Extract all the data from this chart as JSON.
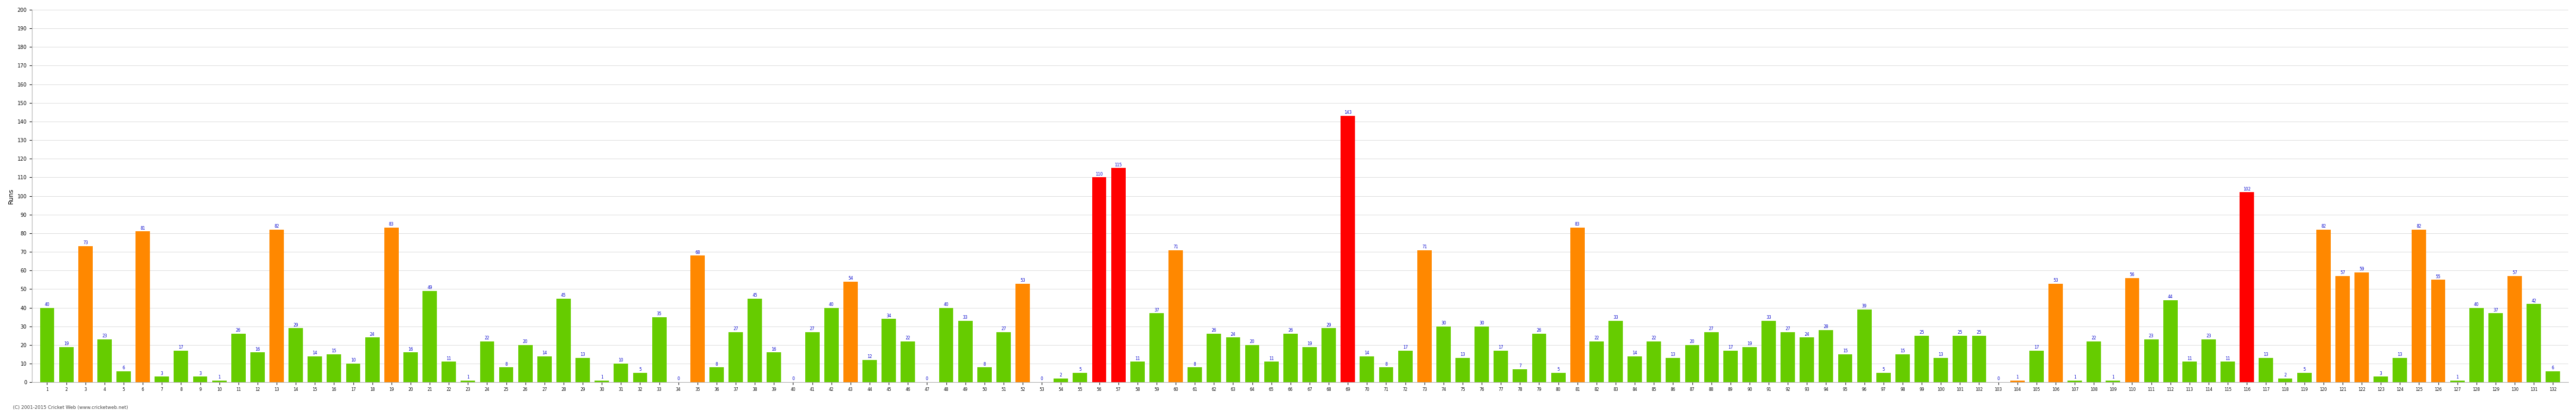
{
  "innings": [
    1,
    2,
    3,
    4,
    5,
    6,
    7,
    8,
    9,
    10,
    11,
    12,
    13,
    14,
    15,
    16,
    17,
    18,
    19,
    20,
    21,
    22,
    23,
    24,
    25,
    26,
    27,
    28,
    29,
    30,
    31,
    32,
    33,
    34,
    35,
    36,
    37,
    38,
    39,
    40,
    41,
    42,
    43,
    44,
    45,
    46,
    47,
    48,
    49,
    50,
    51,
    52,
    53,
    54,
    55,
    56,
    57,
    58,
    59,
    60,
    61,
    62,
    63,
    64,
    65,
    66,
    67,
    68,
    69,
    70,
    71,
    72,
    73,
    74,
    75,
    76,
    77,
    78,
    79,
    80,
    81,
    82,
    83,
    84,
    85,
    86,
    87,
    88,
    89,
    90,
    91,
    92,
    93,
    94,
    95,
    96,
    97,
    98,
    99,
    100,
    101,
    102,
    103,
    104,
    105,
    106,
    107,
    108,
    109,
    110,
    111,
    112,
    113,
    114,
    115,
    116,
    117,
    118,
    119,
    120,
    121,
    122,
    123,
    124,
    125,
    126,
    127,
    128,
    129,
    130,
    131,
    132
  ],
  "values": [
    40,
    19,
    73,
    23,
    6,
    81,
    3,
    17,
    3,
    1,
    26,
    16,
    82,
    29,
    14,
    15,
    10,
    24,
    83,
    16,
    49,
    11,
    1,
    22,
    8,
    20,
    14,
    45,
    13,
    1,
    10,
    5,
    35,
    0,
    68,
    8,
    27,
    45,
    16,
    0,
    27,
    40,
    54,
    12,
    34,
    22,
    0,
    40,
    33,
    8,
    27,
    53,
    0,
    2,
    5,
    110,
    115,
    11,
    37,
    71,
    8,
    26,
    24,
    20,
    11,
    26,
    19,
    29,
    143,
    14,
    8,
    17,
    71,
    30,
    13,
    30,
    17,
    7,
    26,
    5,
    83,
    22,
    33,
    14,
    22,
    13,
    20,
    27,
    17,
    19,
    33,
    27,
    24,
    28,
    15,
    39,
    5,
    15,
    25,
    13,
    25,
    25,
    0,
    1,
    17,
    53,
    1,
    22,
    1,
    56,
    23,
    44,
    11,
    23,
    11,
    102,
    13,
    2,
    5,
    82,
    57,
    59,
    3,
    13,
    82,
    55,
    1,
    40,
    37,
    57,
    42,
    6
  ],
  "colors": [
    "#66cc00",
    "#66cc00",
    "#ff8800",
    "#66cc00",
    "#66cc00",
    "#ff8800",
    "#66cc00",
    "#66cc00",
    "#66cc00",
    "#66cc00",
    "#66cc00",
    "#66cc00",
    "#ff8800",
    "#66cc00",
    "#66cc00",
    "#66cc00",
    "#66cc00",
    "#66cc00",
    "#ff8800",
    "#66cc00",
    "#66cc00",
    "#66cc00",
    "#66cc00",
    "#66cc00",
    "#66cc00",
    "#66cc00",
    "#66cc00",
    "#66cc00",
    "#66cc00",
    "#66cc00",
    "#66cc00",
    "#66cc00",
    "#66cc00",
    "#66cc00",
    "#ff8800",
    "#66cc00",
    "#66cc00",
    "#66cc00",
    "#66cc00",
    "#66cc00",
    "#66cc00",
    "#66cc00",
    "#ff8800",
    "#66cc00",
    "#66cc00",
    "#66cc00",
    "#66cc00",
    "#66cc00",
    "#66cc00",
    "#66cc00",
    "#66cc00",
    "#ff8800",
    "#66cc00",
    "#66cc00",
    "#66cc00",
    "#ff0000",
    "#ff0000",
    "#66cc00",
    "#66cc00",
    "#ff8800",
    "#66cc00",
    "#66cc00",
    "#66cc00",
    "#66cc00",
    "#66cc00",
    "#66cc00",
    "#66cc00",
    "#66cc00",
    "#ff0000",
    "#66cc00",
    "#66cc00",
    "#66cc00",
    "#ff8800",
    "#66cc00",
    "#66cc00",
    "#66cc00",
    "#66cc00",
    "#66cc00",
    "#66cc00",
    "#66cc00",
    "#ff8800",
    "#66cc00",
    "#66cc00",
    "#66cc00",
    "#66cc00",
    "#66cc00",
    "#66cc00",
    "#66cc00",
    "#66cc00",
    "#66cc00",
    "#66cc00",
    "#66cc00",
    "#66cc00",
    "#66cc00",
    "#66cc00",
    "#66cc00",
    "#66cc00",
    "#66cc00",
    "#66cc00",
    "#66cc00",
    "#66cc00",
    "#66cc00",
    "#66cc00",
    "#ff8800",
    "#66cc00",
    "#ff8800",
    "#66cc00",
    "#66cc00",
    "#66cc00",
    "#ff8800",
    "#66cc00",
    "#66cc00",
    "#66cc00",
    "#66cc00",
    "#66cc00",
    "#ff0000",
    "#66cc00",
    "#66cc00",
    "#66cc00",
    "#ff8800",
    "#ff8800",
    "#ff8800",
    "#66cc00",
    "#66cc00",
    "#ff8800",
    "#ff8800",
    "#66cc00",
    "#66cc00",
    "#66cc00",
    "#ff8800",
    "#66cc00",
    "#66cc00"
  ],
  "ylabel": "Runs",
  "ylim": [
    0,
    200
  ],
  "yticks": [
    0,
    10,
    20,
    30,
    40,
    50,
    60,
    70,
    80,
    90,
    100,
    110,
    120,
    130,
    140,
    150,
    160,
    170,
    180,
    190,
    200
  ],
  "value_color": "#0000cc",
  "value_fontsize": 5.5,
  "bar_width": 0.75,
  "background_color": "#ffffff",
  "grid_color": "#cccccc",
  "footer": "(C) 2001-2015 Cricket Web (www.cricketweb.net)"
}
